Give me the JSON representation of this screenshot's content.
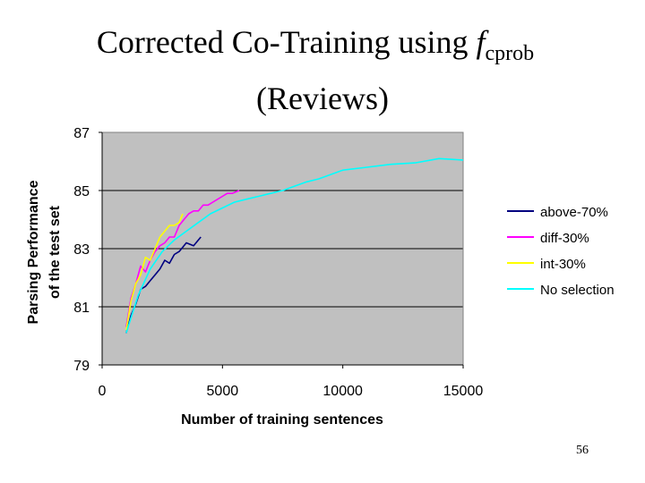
{
  "slide": {
    "title_prefix": "Corrected Co-Training using ",
    "title_f": "f",
    "title_subscript": "cprob",
    "title_line2": "(Reviews)",
    "page_number": "56"
  },
  "chart_data": {
    "type": "line",
    "title": "",
    "xlabel": "Number of training sentences",
    "ylabel_line1": "Parsing Performance",
    "ylabel_line2": "of the test set",
    "xlim": [
      0,
      15000
    ],
    "ylim": [
      79,
      87
    ],
    "xticks": [
      0,
      5000,
      10000,
      15000
    ],
    "yticks": [
      79,
      81,
      83,
      85,
      87
    ],
    "grid": "horizontal",
    "plot_background": "#c0c0c0",
    "legend_position": "right",
    "series": [
      {
        "name": "above-70%",
        "color": "#000080",
        "x": [
          1000,
          1200,
          1400,
          1600,
          1800,
          2000,
          2200,
          2400,
          2600,
          2800,
          3000,
          3200,
          3500,
          3800,
          4100
        ],
        "y": [
          80.1,
          80.7,
          81.1,
          81.6,
          81.7,
          81.9,
          82.1,
          82.3,
          82.6,
          82.5,
          82.8,
          82.9,
          83.2,
          83.1,
          83.4
        ]
      },
      {
        "name": "diff-30%",
        "color": "#ff00ff",
        "x": [
          1000,
          1200,
          1400,
          1600,
          1800,
          2000,
          2200,
          2400,
          2600,
          2800,
          3000,
          3200,
          3400,
          3600,
          3800,
          4000,
          4200,
          4400,
          4600,
          4800,
          5000,
          5200,
          5400,
          5700
        ],
        "y": [
          80.3,
          81.3,
          81.8,
          82.4,
          82.2,
          82.6,
          82.9,
          83.1,
          83.2,
          83.4,
          83.4,
          83.8,
          84.0,
          84.2,
          84.3,
          84.3,
          84.5,
          84.5,
          84.6,
          84.7,
          84.8,
          84.9,
          84.9,
          85.0
        ]
      },
      {
        "name": "int-30%",
        "color": "#ffff00",
        "x": [
          1000,
          1200,
          1400,
          1600,
          1800,
          2000,
          2200,
          2400,
          2600,
          2800,
          3000,
          3200,
          3350
        ],
        "y": [
          80.2,
          81.2,
          81.8,
          82.1,
          82.7,
          82.6,
          83.0,
          83.4,
          83.6,
          83.8,
          83.8,
          83.9,
          84.2
        ]
      },
      {
        "name": "No selection",
        "color": "#00ffff",
        "x": [
          1000,
          1500,
          2000,
          2500,
          3000,
          3500,
          4000,
          4500,
          5000,
          5500,
          6000,
          6500,
          7000,
          7500,
          8000,
          8500,
          9000,
          9500,
          10000,
          11000,
          12000,
          13000,
          14000,
          15000
        ],
        "y": [
          80.1,
          81.4,
          82.3,
          82.9,
          83.3,
          83.6,
          83.9,
          84.2,
          84.4,
          84.6,
          84.7,
          84.8,
          84.9,
          85.0,
          85.15,
          85.3,
          85.4,
          85.55,
          85.7,
          85.8,
          85.9,
          85.95,
          86.1,
          86.05
        ]
      }
    ]
  }
}
